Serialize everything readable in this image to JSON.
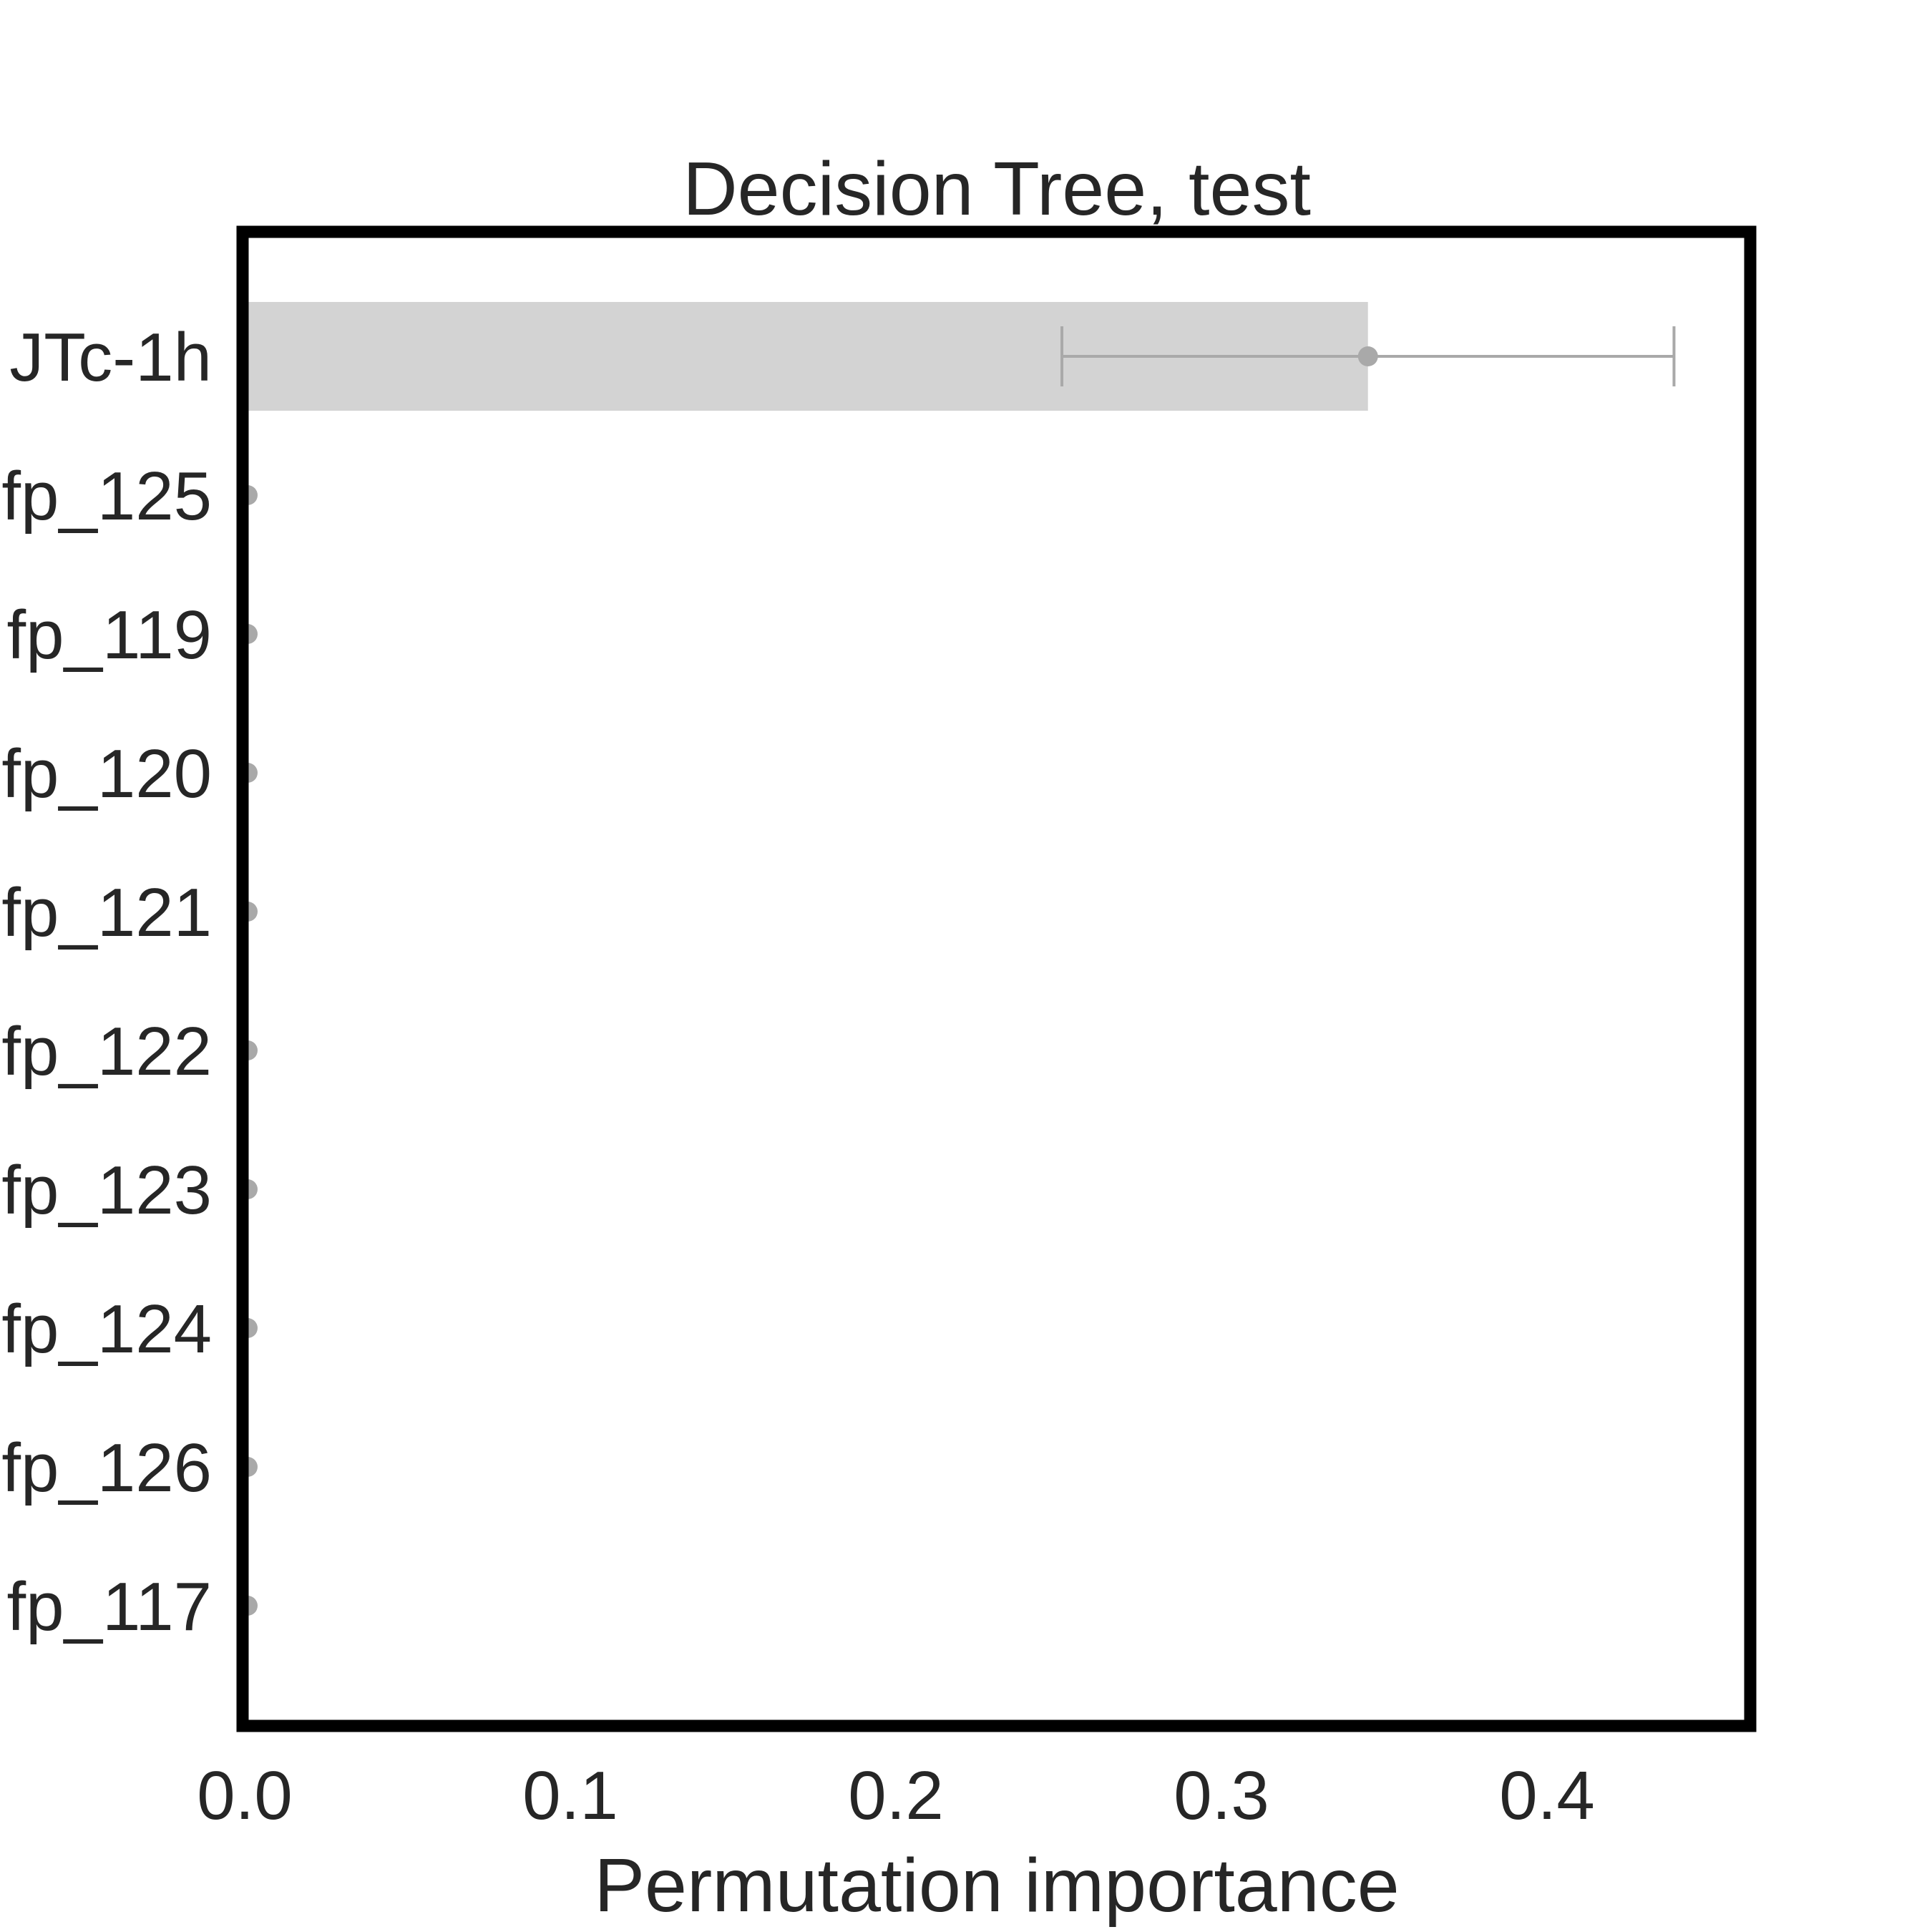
{
  "chart_data": {
    "type": "bar",
    "orientation": "horizontal",
    "title": "Decision Tree, test",
    "xlabel": "Permutation importance",
    "ylabel": "",
    "xlim": [
      0.0,
      0.46
    ],
    "xticks": [
      0.0,
      0.1,
      0.2,
      0.3,
      0.4
    ],
    "xtick_labels": [
      "0.0",
      "0.1",
      "0.2",
      "0.3",
      "0.4"
    ],
    "categories": [
      "JTc-1h",
      "fp_125",
      "fp_119",
      "fp_120",
      "fp_121",
      "fp_122",
      "fp_123",
      "fp_124",
      "fp_126",
      "fp_117"
    ],
    "values": [
      0.345,
      0.0,
      0.0,
      0.0,
      0.0,
      0.0,
      0.0,
      0.0,
      0.0,
      0.0
    ],
    "error_low": [
      0.251,
      0.0,
      0.0,
      0.0,
      0.0,
      0.0,
      0.0,
      0.0,
      0.0,
      0.0
    ],
    "error_high": [
      0.439,
      0.0,
      0.0,
      0.0,
      0.0,
      0.0,
      0.0,
      0.0,
      0.0,
      0.0
    ],
    "grid": false,
    "bar_color": "#d3d3d3",
    "error_color": "#a9a9a9",
    "frame_color": "#000000"
  }
}
